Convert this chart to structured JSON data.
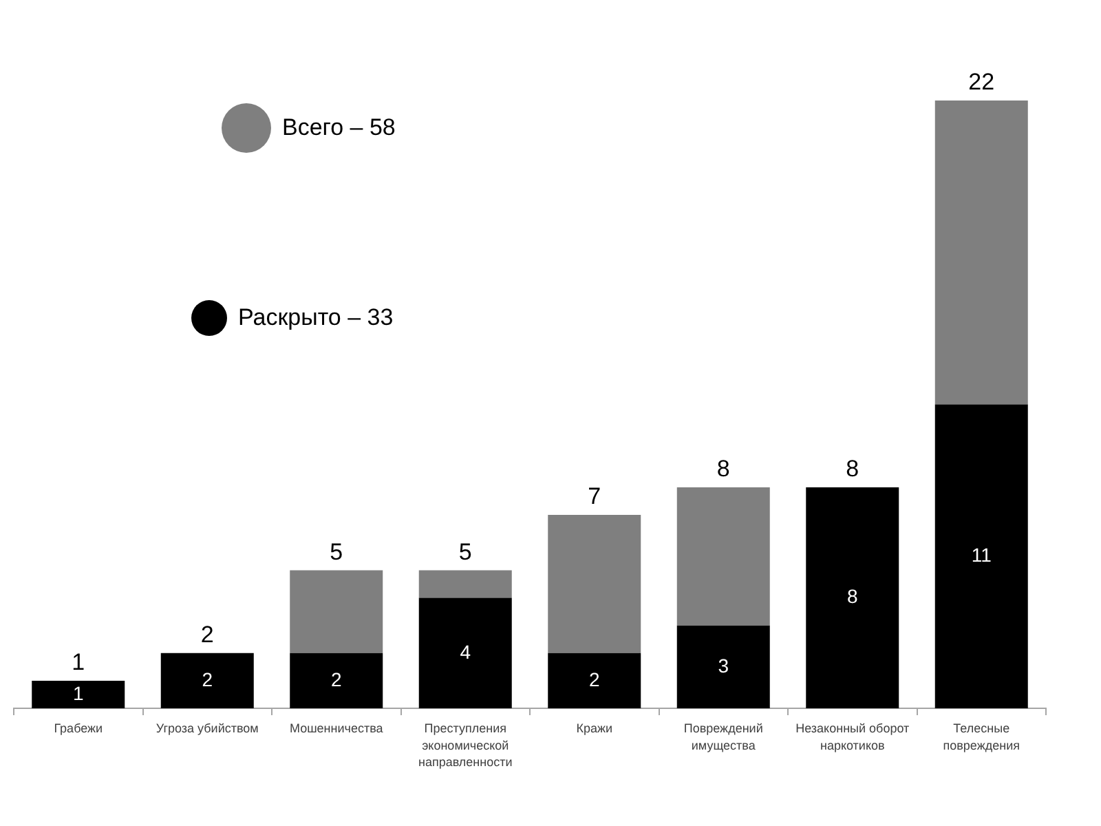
{
  "chart_data": {
    "type": "bar",
    "stacked": true,
    "categories": [
      "Грабежи",
      "Угроза убийством",
      "Мошенничества",
      "Преступления экономической направленности",
      "Кражи",
      "Повреждений имущества",
      "Незаконный оборот наркотиков",
      "Телесные повреждения"
    ],
    "series": [
      {
        "name": "Раскрыто – 33",
        "color": "#000000",
        "values": [
          1,
          2,
          2,
          4,
          2,
          3,
          8,
          11
        ],
        "value_labels": [
          "1",
          "2",
          "2",
          "4",
          "2",
          "3",
          "8",
          "11"
        ]
      },
      {
        "name": "Всего – 58",
        "color": "#7f7f7f",
        "values": [
          0,
          0,
          3,
          1,
          5,
          5,
          0,
          11
        ]
      }
    ],
    "totals": [
      "1",
      "2",
      "5",
      "5",
      "7",
      "8",
      "8",
      "22"
    ],
    "legend": "top left",
    "grid": false,
    "tick_labels": "x"
  }
}
